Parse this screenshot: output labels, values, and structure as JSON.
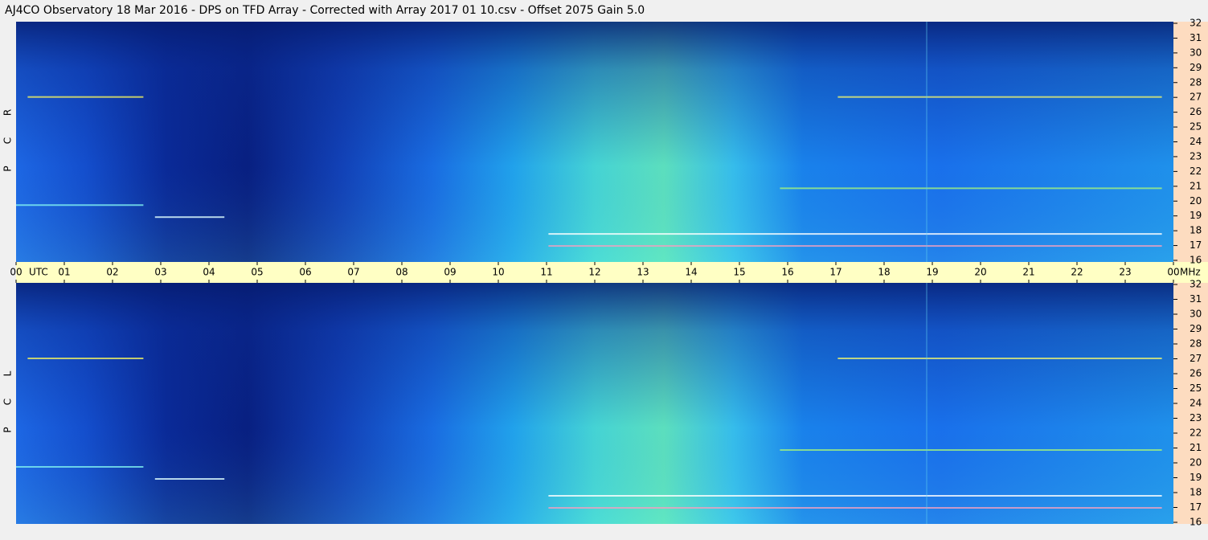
{
  "chart_data": {
    "type": "spectrogram",
    "title": "AJ4CO Observatory  18 Mar 2016  -  DPS on TFD Array  -  Corrected with Array 2017 01 10.csv  -  Offset 2075  Gain 5.0",
    "time_labels": [
      "00",
      "01",
      "02",
      "03",
      "04",
      "05",
      "06",
      "07",
      "08",
      "09",
      "10",
      "11",
      "12",
      "13",
      "14",
      "15",
      "16",
      "17",
      "18",
      "19",
      "20",
      "21",
      "22",
      "23",
      "00"
    ],
    "time_unit": "UTC",
    "frequency_unit": "MHz",
    "ylim": [
      16,
      32
    ],
    "yticks": [
      16,
      17,
      18,
      19,
      20,
      21,
      22,
      23,
      24,
      25,
      26,
      27,
      28,
      29,
      30,
      31,
      32
    ],
    "panels": [
      {
        "label": [
          "R",
          "C",
          "P"
        ]
      },
      {
        "label": [
          "L",
          "C",
          "P"
        ]
      }
    ]
  }
}
